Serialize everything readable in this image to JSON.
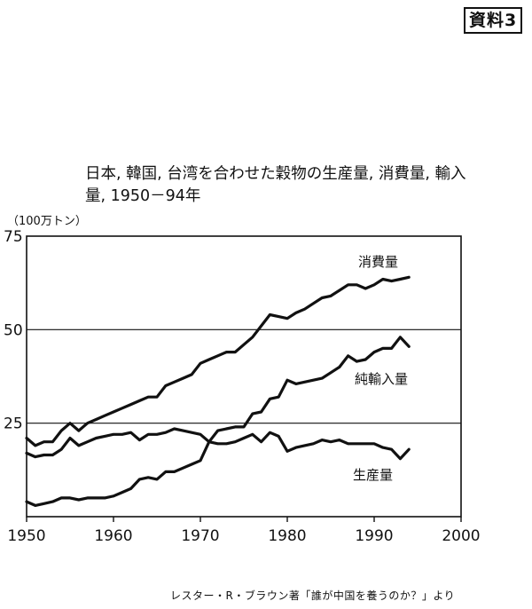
{
  "badge": "資料3",
  "title": "日本, 韓国, 台湾を合わせた穀物の生産量, 消費量, 輸入量, 1950－94年",
  "unit": "（100万トン）",
  "source": "レスター・R・ブラウン著「誰が中国を養うのか？」より",
  "chart_data": {
    "type": "line",
    "title": "日本, 韓国, 台湾を合わせた穀物の生産量, 消費量, 輸入量, 1950－94年",
    "xlabel": "",
    "ylabel": "（100万トン）",
    "xlim": [
      1950,
      2000
    ],
    "ylim": [
      0,
      75
    ],
    "x_ticks": [
      "1950",
      "1960",
      "1970",
      "1980",
      "1990",
      "2000"
    ],
    "y_ticks": [
      "25",
      "50",
      "75"
    ],
    "grid_y": [
      25,
      50
    ],
    "x": [
      1950,
      1951,
      1952,
      1953,
      1954,
      1955,
      1956,
      1957,
      1958,
      1959,
      1960,
      1961,
      1962,
      1963,
      1964,
      1965,
      1966,
      1967,
      1968,
      1969,
      1970,
      1971,
      1972,
      1973,
      1974,
      1975,
      1976,
      1977,
      1978,
      1979,
      1980,
      1981,
      1982,
      1983,
      1984,
      1985,
      1986,
      1987,
      1988,
      1989,
      1990,
      1991,
      1992,
      1993,
      1994
    ],
    "series": [
      {
        "name": "消費量",
        "values": [
          21,
          19,
          20,
          20,
          23,
          25,
          23,
          25,
          26,
          27,
          28,
          29,
          30,
          31,
          32,
          32,
          35,
          36,
          37,
          38,
          41,
          42,
          43,
          44,
          44,
          46,
          48,
          51,
          54,
          53.5,
          53,
          54.5,
          55.5,
          57,
          58.5,
          59,
          60.5,
          62,
          62,
          61,
          62,
          63.5,
          63,
          63.5,
          64
        ]
      },
      {
        "name": "純輸入量",
        "values": [
          4,
          3,
          3.5,
          4,
          5,
          5,
          4.5,
          5,
          5,
          5,
          5.5,
          6.5,
          7.5,
          10,
          10.5,
          10,
          12,
          12,
          13,
          14,
          15,
          20,
          23,
          23.5,
          24,
          24,
          27.5,
          28,
          31.5,
          32,
          36.5,
          35.5,
          36,
          36.5,
          37,
          38.5,
          40,
          43,
          41.5,
          42,
          44,
          45,
          45,
          48,
          45.5
        ]
      },
      {
        "name": "生産量",
        "values": [
          17,
          16,
          16.5,
          16.5,
          18,
          21,
          19,
          20,
          21,
          21.5,
          22,
          22,
          22.5,
          20.5,
          22,
          22,
          22.5,
          23.5,
          23,
          22.5,
          22,
          20,
          19.5,
          19.5,
          20,
          21,
          22,
          20,
          22.5,
          21.5,
          17.5,
          18.5,
          19,
          19.5,
          20.5,
          20,
          20.5,
          19.5,
          19.5,
          19.5,
          19.5,
          18.5,
          18,
          15.5,
          18
        ]
      }
    ]
  }
}
